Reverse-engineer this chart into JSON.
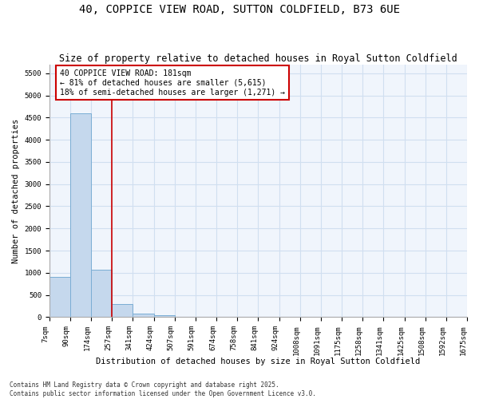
{
  "title": "40, COPPICE VIEW ROAD, SUTTON COLDFIELD, B73 6UE",
  "subtitle": "Size of property relative to detached houses in Royal Sutton Coldfield",
  "xlabel": "Distribution of detached houses by size in Royal Sutton Coldfield",
  "ylabel": "Number of detached properties",
  "bar_values": [
    900,
    4600,
    1075,
    295,
    80,
    45,
    0,
    0,
    0,
    0,
    0,
    0,
    0,
    0,
    0,
    0,
    0,
    0,
    0,
    0
  ],
  "bin_labels": [
    "7sqm",
    "90sqm",
    "174sqm",
    "257sqm",
    "341sqm",
    "424sqm",
    "507sqm",
    "591sqm",
    "674sqm",
    "758sqm",
    "841sqm",
    "924sqm",
    "1008sqm",
    "1091sqm",
    "1175sqm",
    "1258sqm",
    "1341sqm",
    "1425sqm",
    "1508sqm",
    "1592sqm",
    "1675sqm"
  ],
  "bar_color": "#c5d8ed",
  "bar_edge_color": "#7aadd4",
  "bar_edge_width": 0.7,
  "grid_color": "#d0dff0",
  "background_color": "#ffffff",
  "plot_bg_color": "#f0f5fc",
  "vline_x_index": 2,
  "vline_color": "#cc0000",
  "annotation_text": "40 COPPICE VIEW ROAD: 181sqm\n← 81% of detached houses are smaller (5,615)\n18% of semi-detached houses are larger (1,271) →",
  "annotation_box_color": "#ffffff",
  "annotation_box_edge": "#cc0000",
  "annotation_fontsize": 7,
  "ylim": [
    0,
    5700
  ],
  "yticks": [
    0,
    500,
    1000,
    1500,
    2000,
    2500,
    3000,
    3500,
    4000,
    4500,
    5000,
    5500
  ],
  "title_fontsize": 10,
  "subtitle_fontsize": 8.5,
  "xlabel_fontsize": 7.5,
  "ylabel_fontsize": 7.5,
  "tick_fontsize": 6.5,
  "footer_text": "Contains HM Land Registry data © Crown copyright and database right 2025.\nContains public sector information licensed under the Open Government Licence v3.0.",
  "footer_fontsize": 5.5
}
